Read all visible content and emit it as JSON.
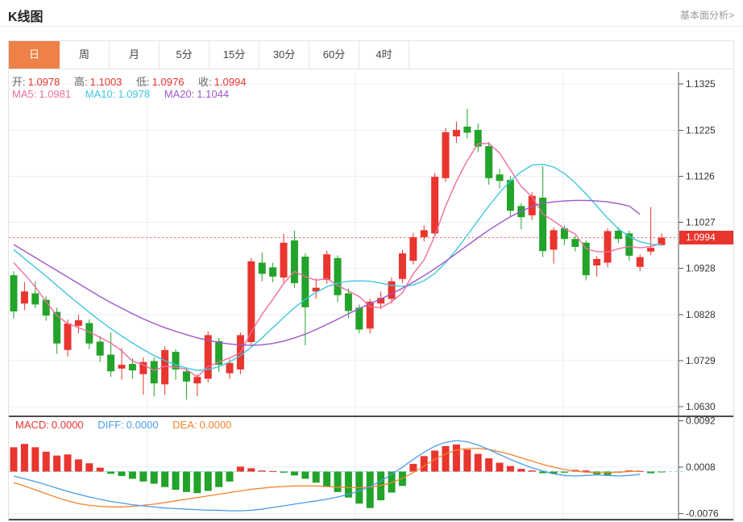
{
  "page": {
    "title": "K线图",
    "link": "基本面分析>"
  },
  "tabs": {
    "items": [
      "日",
      "周",
      "月",
      "5分",
      "15分",
      "30分",
      "60分",
      "4时"
    ],
    "selected": "日"
  },
  "legend": {
    "ohlc": [
      {
        "label": "开:",
        "value": "1.0978"
      },
      {
        "label": "高:",
        "value": "1.1003"
      },
      {
        "label": "低:",
        "value": "1.0976"
      },
      {
        "label": "收:",
        "value": "1.0994"
      }
    ],
    "ma": [
      {
        "label": "MA5:",
        "value": "1.0981"
      },
      {
        "label": "MA10:",
        "value": "1.0978"
      },
      {
        "label": "MA20:",
        "value": "1.1044"
      }
    ],
    "macd": [
      {
        "label": "MACD:",
        "value": "0.0000"
      },
      {
        "label": "DIFF:",
        "value": "0.0000"
      },
      {
        "label": "DEA:",
        "value": "0.0000"
      }
    ]
  },
  "price_tag": "1.0994",
  "colors": {
    "up": "#e8352e",
    "down": "#22a32a",
    "ma5": "#ef6e9f",
    "ma10": "#3fc7dd",
    "ma20": "#a156c8",
    "diff": "#4a9ce8",
    "dea": "#f5832b",
    "tab_selected": "#ee8147",
    "price_line": "#f4645f",
    "grid": "#e9eef4",
    "axis": "#555555",
    "panel_border": "#111111",
    "zero_dash": "#a5d8e8"
  },
  "chart_data": {
    "type": "candlestick",
    "title": "K线图",
    "timeframe_selected": "日",
    "grid": true,
    "legend_position": "top-left",
    "y_axis": {
      "labels": [
        "1.1325",
        "1.1225",
        "1.1126",
        "1.1027",
        "1.0928",
        "1.0828",
        "1.0729",
        "1.0630"
      ],
      "values": [
        1.1325,
        1.1225,
        1.1126,
        1.1027,
        1.0928,
        1.0828,
        1.0729,
        1.063
      ]
    },
    "price_line": 1.0994,
    "last_bar": {
      "open": 1.0978,
      "high": 1.1003,
      "low": 1.0976,
      "close": 1.0994
    },
    "candles_ohlc": [
      [
        1.0913,
        1.0922,
        1.082,
        1.0835
      ],
      [
        1.0852,
        1.0898,
        1.0838,
        1.0878
      ],
      [
        1.0874,
        1.09,
        1.0842,
        1.085
      ],
      [
        1.086,
        1.0868,
        1.0815,
        1.0826
      ],
      [
        1.0834,
        1.0843,
        1.0744,
        1.0766
      ],
      [
        1.0752,
        1.0818,
        1.0738,
        1.0809
      ],
      [
        1.0804,
        1.0828,
        1.0788,
        1.0816
      ],
      [
        1.081,
        1.0818,
        1.0754,
        1.0766
      ],
      [
        1.077,
        1.0782,
        1.0726,
        1.074
      ],
      [
        1.0742,
        1.079,
        1.0694,
        1.0706
      ],
      [
        1.0712,
        1.0756,
        1.0688,
        1.072
      ],
      [
        1.0722,
        1.0734,
        1.069,
        1.0708
      ],
      [
        1.07,
        1.0736,
        1.0656,
        1.0726
      ],
      [
        1.0728,
        1.0736,
        1.0652,
        1.068
      ],
      [
        1.0678,
        1.076,
        1.0655,
        1.0752
      ],
      [
        1.0748,
        1.0754,
        1.0688,
        1.071
      ],
      [
        1.0706,
        1.0714,
        1.0645,
        1.0684
      ],
      [
        1.068,
        1.07,
        1.0652,
        1.0694
      ],
      [
        1.069,
        1.0792,
        1.0682,
        1.0784
      ],
      [
        1.0771,
        1.0778,
        1.0705,
        1.072
      ],
      [
        1.0702,
        1.0732,
        1.069,
        1.0724
      ],
      [
        1.071,
        1.079,
        1.07,
        1.0784
      ],
      [
        1.0769,
        1.095,
        1.076,
        1.0943
      ],
      [
        1.094,
        1.0962,
        1.09,
        1.0916
      ],
      [
        1.093,
        1.094,
        1.0898,
        1.091
      ],
      [
        1.0908,
        1.1002,
        1.0898,
        1.0983
      ],
      [
        1.0988,
        1.1009,
        1.0886,
        1.0896
      ],
      [
        1.0953,
        1.096,
        1.0762,
        1.0844
      ],
      [
        1.0878,
        1.0906,
        1.0862,
        1.0886
      ],
      [
        1.0903,
        1.0966,
        1.0895,
        1.0958
      ],
      [
        1.095,
        1.0956,
        1.0855,
        1.087
      ],
      [
        1.0874,
        1.0884,
        1.082,
        1.0836
      ],
      [
        1.0843,
        1.085,
        1.0788,
        1.0796
      ],
      [
        1.0798,
        1.0862,
        1.0788,
        1.0856
      ],
      [
        1.0852,
        1.0878,
        1.084,
        1.0864
      ],
      [
        1.0862,
        1.0908,
        1.0852,
        1.09
      ],
      [
        1.0905,
        1.0968,
        1.0896,
        1.096
      ],
      [
        1.0944,
        1.1004,
        1.0936,
        1.0995
      ],
      [
        1.0995,
        1.102,
        1.0986,
        1.101
      ],
      [
        1.1003,
        1.1133,
        1.0996,
        1.1125
      ],
      [
        1.1122,
        1.123,
        1.1114,
        1.1221
      ],
      [
        1.1212,
        1.1244,
        1.1198,
        1.1226
      ],
      [
        1.1233,
        1.1271,
        1.1208,
        1.122
      ],
      [
        1.1226,
        1.124,
        1.1178,
        1.119
      ],
      [
        1.1191,
        1.12,
        1.1108,
        1.1122
      ],
      [
        1.113,
        1.1142,
        1.11,
        1.1116
      ],
      [
        1.1118,
        1.1126,
        1.104,
        1.1052
      ],
      [
        1.1062,
        1.1068,
        1.1012,
        1.1038
      ],
      [
        1.1042,
        1.1092,
        1.1032,
        1.1084
      ],
      [
        1.108,
        1.1148,
        1.0952,
        1.0965
      ],
      [
        1.0968,
        1.1016,
        1.0938,
        1.101
      ],
      [
        1.1014,
        1.102,
        1.0978,
        1.0991
      ],
      [
        1.0991,
        1.0998,
        1.0964,
        1.0974
      ],
      [
        1.0983,
        1.0988,
        1.0902,
        1.0913
      ],
      [
        1.0934,
        1.0954,
        1.091,
        1.0948
      ],
      [
        1.094,
        1.1014,
        1.093,
        1.1008
      ],
      [
        1.1009,
        1.1016,
        1.0982,
        1.0991
      ],
      [
        1.1003,
        1.1009,
        1.0944,
        1.0955
      ],
      [
        1.0931,
        1.0958,
        1.0922,
        1.0952
      ],
      [
        1.0964,
        1.106,
        1.0956,
        1.0972
      ],
      [
        1.0978,
        1.1003,
        1.0976,
        1.0994
      ]
    ],
    "ma5": [
      1.094,
      1.0915,
      1.0888,
      1.0856,
      1.0826,
      1.0809,
      1.08,
      1.0791,
      1.0779,
      1.0767,
      1.075,
      1.0728,
      1.072,
      1.0708,
      1.0717,
      1.0715,
      1.071,
      1.0694,
      1.0716,
      1.0726,
      1.0735,
      1.0746,
      1.0791,
      1.0829,
      1.0861,
      1.0895,
      1.0921,
      1.091,
      1.0902,
      1.0906,
      1.0891,
      1.0879,
      1.0867,
      1.0845,
      1.0843,
      1.0856,
      1.0875,
      1.0916,
      1.0946,
      1.0998,
      1.1062,
      1.1115,
      1.116,
      1.1196,
      1.1197,
      1.1176,
      1.114,
      1.1104,
      1.1082,
      1.1045,
      1.103,
      1.1013,
      1.1002,
      1.097,
      1.0964,
      1.0963,
      1.097,
      1.0975,
      1.0972,
      1.0975,
      1.0981
    ],
    "ma10": [
      1.0968,
      1.0949,
      1.093,
      1.0911,
      1.0891,
      1.0871,
      1.0852,
      1.0833,
      1.0815,
      1.0798,
      1.0782,
      1.0767,
      1.0753,
      1.074,
      1.0729,
      1.072,
      1.0713,
      1.0708,
      1.071,
      1.0716,
      1.0726,
      1.074,
      1.0758,
      1.0778,
      1.08,
      1.0822,
      1.0843,
      1.0861,
      1.0876,
      1.0888,
      1.0896,
      1.09,
      1.0901,
      1.09,
      1.0896,
      1.0891,
      1.0889,
      1.0892,
      1.0901,
      1.0917,
      1.094,
      1.0968,
      1.0999,
      1.1031,
      1.1062,
      1.1091,
      1.1116,
      1.1136,
      1.115,
      1.1152,
      1.1146,
      1.1132,
      1.1112,
      1.1088,
      1.1062,
      1.1036,
      1.1013,
      1.0996,
      1.0985,
      1.098,
      1.0978
    ],
    "ma20": [
      1.0979,
      1.0965,
      1.0951,
      1.0937,
      1.0923,
      1.0909,
      1.0895,
      1.0881,
      1.0867,
      1.0854,
      1.0842,
      1.083,
      1.0819,
      1.0809,
      1.08,
      1.0792,
      1.0785,
      1.0778,
      1.0773,
      1.0768,
      1.0765,
      1.0763,
      1.0762,
      1.0763,
      1.0766,
      1.0771,
      1.0778,
      1.0786,
      1.0796,
      1.0807,
      1.0818,
      1.083,
      1.0841,
      1.0852,
      1.0862,
      1.0873,
      1.0885,
      1.0898,
      1.0912,
      1.0927,
      1.0943,
      1.096,
      1.0977,
      1.0994,
      1.101,
      1.1025,
      1.1039,
      1.1051,
      1.1061,
      1.1068,
      1.1071,
      1.1073,
      1.1074,
      1.1074,
      1.1073,
      1.1071,
      1.1067,
      1.1062,
      1.1044,
      null,
      null
    ],
    "macd": {
      "axis": {
        "labels": [
          "0.0092",
          "0.0008",
          "-0.0076"
        ],
        "values": [
          0.0092,
          0.0008,
          -0.0076
        ]
      },
      "hist": [
        0.0044,
        0.005,
        0.0044,
        0.0036,
        0.0029,
        0.0031,
        0.0022,
        0.0015,
        0.0007,
        -0.0004,
        -0.0008,
        -0.0013,
        -0.0018,
        -0.0022,
        -0.0028,
        -0.0033,
        -0.0037,
        -0.0039,
        -0.0035,
        -0.0028,
        -0.0018,
        0.0009,
        0.0006,
        0.0002,
        0.0001,
        -0.0002,
        -0.0007,
        -0.0013,
        -0.002,
        -0.0028,
        -0.0037,
        -0.0047,
        -0.0058,
        -0.0066,
        -0.0052,
        -0.0038,
        -0.0026,
        0.0014,
        0.0028,
        0.0038,
        0.0046,
        0.0049,
        0.004,
        0.0032,
        0.0024,
        0.0016,
        0.001,
        0.0005,
        0.0002,
        -0.0003,
        -0.0004,
        -0.0002,
        0.0003,
        0.0002,
        -0.0005,
        -0.0006,
        -0.0002,
        0.0002,
        0.0001,
        -0.0003,
        -0.0001
      ],
      "diff": [
        -0.0008,
        -0.0013,
        -0.0018,
        -0.0024,
        -0.003,
        -0.0036,
        -0.0041,
        -0.0046,
        -0.005,
        -0.0054,
        -0.0057,
        -0.006,
        -0.0062,
        -0.0064,
        -0.0066,
        -0.0067,
        -0.0068,
        -0.0069,
        -0.007,
        -0.007,
        -0.0071,
        -0.0071,
        -0.007,
        -0.0068,
        -0.0065,
        -0.0062,
        -0.0059,
        -0.0056,
        -0.0053,
        -0.005,
        -0.0046,
        -0.0041,
        -0.0035,
        -0.0027,
        -0.0017,
        -0.0005,
        0.0008,
        0.0022,
        0.0035,
        0.0046,
        0.0053,
        0.0056,
        0.0054,
        0.0048,
        0.004,
        0.0031,
        0.0022,
        0.0014,
        0.0007,
        0.0001,
        -0.0004,
        -0.0007,
        -0.0008,
        -0.0007,
        -0.0006,
        -0.0007,
        -0.0008,
        -0.0007,
        -0.0005,
        null,
        null
      ],
      "dea": [
        -0.002,
        -0.0026,
        -0.0033,
        -0.004,
        -0.0047,
        -0.0053,
        -0.0058,
        -0.0061,
        -0.0063,
        -0.0064,
        -0.0064,
        -0.0063,
        -0.0061,
        -0.0059,
        -0.0056,
        -0.0053,
        -0.005,
        -0.0047,
        -0.0044,
        -0.0041,
        -0.0038,
        -0.0035,
        -0.0032,
        -0.003,
        -0.0028,
        -0.0027,
        -0.0026,
        -0.0026,
        -0.0026,
        -0.0027,
        -0.0028,
        -0.0029,
        -0.0029,
        -0.0028,
        -0.0025,
        -0.002,
        -0.0012,
        -0.0002,
        0.001,
        0.0022,
        0.0032,
        0.0039,
        0.0042,
        0.0042,
        0.004,
        0.0036,
        0.0031,
        0.0025,
        0.0019,
        0.0013,
        0.0008,
        0.0004,
        0.0001,
        -0.0001,
        -0.0002,
        -0.0002,
        -0.0001,
        0.0,
        0.0001,
        null,
        null
      ]
    }
  }
}
